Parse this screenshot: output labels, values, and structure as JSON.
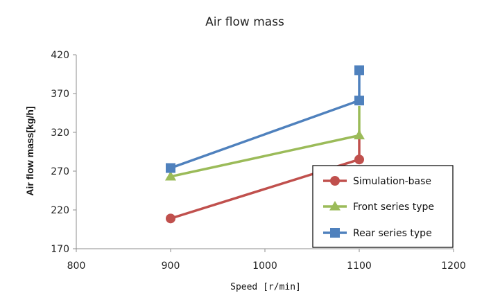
{
  "chart_data": {
    "type": "line",
    "title": "Air flow mass",
    "xlabel": "Speed [r/min]",
    "ylabel": "Air flow mass[kg/h]",
    "xlim": [
      800,
      1200
    ],
    "ylim": [
      170,
      420
    ],
    "xticks": [
      800,
      900,
      1000,
      1100,
      1200
    ],
    "yticks": [
      170,
      220,
      270,
      320,
      370,
      420
    ],
    "grid": false,
    "legend_position": "bottom-right",
    "series": [
      {
        "name": "Simulation-base",
        "color": "#C0504D",
        "marker": "circle",
        "points": [
          [
            900,
            209
          ],
          [
            1100,
            285
          ],
          [
            1100,
            322
          ]
        ]
      },
      {
        "name": "Front series type",
        "color": "#9BBB59",
        "marker": "triangle",
        "points": [
          [
            900,
            263
          ],
          [
            1100,
            316
          ],
          [
            1100,
            354
          ]
        ]
      },
      {
        "name": "Rear series type",
        "color": "#4F81BD",
        "marker": "square",
        "points": [
          [
            900,
            274
          ],
          [
            1100,
            361
          ],
          [
            1100,
            400
          ]
        ]
      }
    ]
  }
}
